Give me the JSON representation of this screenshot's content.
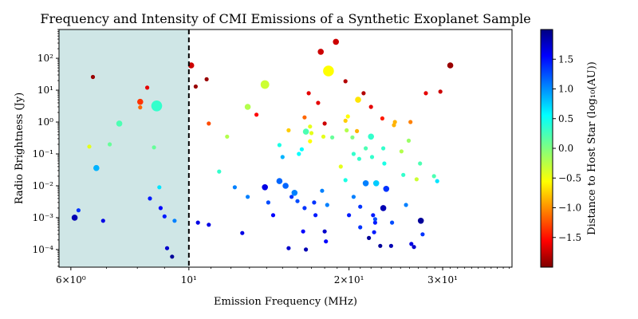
{
  "chart_data": {
    "type": "scatter",
    "title": "Frequency and Intensity of CMI Emissions of a Synthetic Exoplanet Sample",
    "xlabel": "Emission Frequency (MHz)",
    "ylabel": "Radio Brightness (Jy)",
    "x_scale": "log",
    "y_scale": "log",
    "xlim": [
      5.7,
      40.5
    ],
    "ylim": [
      2.8e-05,
      800
    ],
    "x_ticks": [
      {
        "value": 6,
        "label": "6×10⁰"
      },
      {
        "value": 10,
        "label": "10¹"
      },
      {
        "value": 20,
        "label": "2×10¹"
      },
      {
        "value": 30,
        "label": "3×10¹"
      }
    ],
    "y_ticks": [
      {
        "value": 0.0001,
        "label": "10⁻⁴"
      },
      {
        "value": 0.001,
        "label": "10⁻³"
      },
      {
        "value": 0.01,
        "label": "10⁻²"
      },
      {
        "value": 0.1,
        "label": "10⁻¹"
      },
      {
        "value": 1,
        "label": "10⁰"
      },
      {
        "value": 10,
        "label": "10¹"
      },
      {
        "value": 100,
        "label": "10²"
      }
    ],
    "shaded_region": {
      "x_start": 5.7,
      "x_end": 10,
      "color": "#cfe6e6"
    },
    "cutoff_line": {
      "x": 10,
      "style": "dashed",
      "color": "#000000"
    },
    "grid": false,
    "colorbar": {
      "label": "Distance to Host Star (log₁₀(AU))",
      "colormap": "jet_r",
      "range": [
        -2.0,
        2.0
      ],
      "ticks": [
        {
          "value": -1.5,
          "label": "−1.5"
        },
        {
          "value": -1.0,
          "label": "−1.0"
        },
        {
          "value": -0.5,
          "label": "−0.5"
        },
        {
          "value": 0.0,
          "label": "0.0"
        },
        {
          "value": 0.5,
          "label": "0.5"
        },
        {
          "value": 1.0,
          "label": "1.0"
        },
        {
          "value": 1.5,
          "label": "1.5"
        }
      ]
    },
    "points": [
      {
        "x": 6.6,
        "y": 26,
        "c": -1.9,
        "s": 2
      },
      {
        "x": 6.5,
        "y": 0.17,
        "c": -0.4,
        "s": 2
      },
      {
        "x": 6.2,
        "y": 0.0017,
        "c": 1.3,
        "s": 2
      },
      {
        "x": 6.1,
        "y": 0.001,
        "c": 1.8,
        "s": 3
      },
      {
        "x": 6.7,
        "y": 0.036,
        "c": 0.8,
        "s": 3
      },
      {
        "x": 6.9,
        "y": 0.0008,
        "c": 1.6,
        "s": 2
      },
      {
        "x": 7.1,
        "y": 0.2,
        "c": 0.1,
        "s": 2
      },
      {
        "x": 7.4,
        "y": 0.9,
        "c": 0.2,
        "s": 3
      },
      {
        "x": 8.1,
        "y": 4.3,
        "c": -1.3,
        "s": 3
      },
      {
        "x": 8.1,
        "y": 2.9,
        "c": -1.1,
        "s": 2
      },
      {
        "x": 8.35,
        "y": 12,
        "c": -1.6,
        "s": 2
      },
      {
        "x": 8.7,
        "y": 3.2,
        "c": 0.3,
        "s": 5
      },
      {
        "x": 8.6,
        "y": 0.16,
        "c": 0.1,
        "s": 2
      },
      {
        "x": 8.8,
        "y": 0.009,
        "c": 0.6,
        "s": 2
      },
      {
        "x": 8.45,
        "y": 0.004,
        "c": 1.4,
        "s": 2
      },
      {
        "x": 8.85,
        "y": 0.002,
        "c": 1.5,
        "s": 2
      },
      {
        "x": 9.0,
        "y": 0.0011,
        "c": 1.4,
        "s": 2
      },
      {
        "x": 9.4,
        "y": 0.0008,
        "c": 1.0,
        "s": 2
      },
      {
        "x": 9.1,
        "y": 0.00011,
        "c": 1.7,
        "s": 2
      },
      {
        "x": 9.3,
        "y": 6e-05,
        "c": 1.9,
        "s": 2
      },
      {
        "x": 10.1,
        "y": 60,
        "c": -1.7,
        "s": 3
      },
      {
        "x": 10.3,
        "y": 13,
        "c": -1.9,
        "s": 2
      },
      {
        "x": 10.8,
        "y": 22,
        "c": -1.9,
        "s": 2
      },
      {
        "x": 10.9,
        "y": 0.9,
        "c": -1.2,
        "s": 2
      },
      {
        "x": 11.4,
        "y": 0.028,
        "c": 0.3,
        "s": 2
      },
      {
        "x": 10.4,
        "y": 0.0007,
        "c": 1.6,
        "s": 2
      },
      {
        "x": 10.9,
        "y": 0.0006,
        "c": 1.6,
        "s": 2
      },
      {
        "x": 11.8,
        "y": 0.35,
        "c": -0.2,
        "s": 2
      },
      {
        "x": 12.2,
        "y": 0.009,
        "c": 1.0,
        "s": 2
      },
      {
        "x": 12.6,
        "y": 0.00033,
        "c": 1.6,
        "s": 2
      },
      {
        "x": 12.9,
        "y": 3.0,
        "c": -0.2,
        "s": 3
      },
      {
        "x": 12.9,
        "y": 0.0045,
        "c": 1.0,
        "s": 2
      },
      {
        "x": 13.4,
        "y": 1.7,
        "c": -1.5,
        "s": 2
      },
      {
        "x": 13.9,
        "y": 15,
        "c": -0.3,
        "s": 4
      },
      {
        "x": 13.9,
        "y": 0.009,
        "c": 1.6,
        "s": 3
      },
      {
        "x": 14.1,
        "y": 0.003,
        "c": 1.2,
        "s": 2
      },
      {
        "x": 14.4,
        "y": 0.0012,
        "c": 1.5,
        "s": 2
      },
      {
        "x": 14.8,
        "y": 0.014,
        "c": 1.1,
        "s": 3
      },
      {
        "x": 14.8,
        "y": 0.19,
        "c": 0.4,
        "s": 2
      },
      {
        "x": 15.0,
        "y": 0.08,
        "c": 0.8,
        "s": 2
      },
      {
        "x": 15.2,
        "y": 0.01,
        "c": 1.1,
        "s": 3
      },
      {
        "x": 15.4,
        "y": 0.55,
        "c": -0.7,
        "s": 2
      },
      {
        "x": 15.6,
        "y": 0.0045,
        "c": 1.3,
        "s": 2
      },
      {
        "x": 15.4,
        "y": 0.00011,
        "c": 1.7,
        "s": 2
      },
      {
        "x": 15.8,
        "y": 0.006,
        "c": 1.0,
        "s": 3
      },
      {
        "x": 16.1,
        "y": 0.1,
        "c": 0.5,
        "s": 2
      },
      {
        "x": 16.3,
        "y": 0.14,
        "c": 0.5,
        "s": 2
      },
      {
        "x": 16.0,
        "y": 0.0033,
        "c": 1.2,
        "s": 2
      },
      {
        "x": 16.5,
        "y": 1.4,
        "c": -1.1,
        "s": 2
      },
      {
        "x": 16.6,
        "y": 0.5,
        "c": 0.2,
        "s": 3
      },
      {
        "x": 16.5,
        "y": 0.002,
        "c": 1.3,
        "s": 2
      },
      {
        "x": 16.4,
        "y": 0.00037,
        "c": 1.5,
        "s": 2
      },
      {
        "x": 16.6,
        "y": 0.0001,
        "c": 1.8,
        "s": 2
      },
      {
        "x": 16.8,
        "y": 8,
        "c": -1.6,
        "s": 2
      },
      {
        "x": 16.9,
        "y": 0.72,
        "c": -0.4,
        "s": 2
      },
      {
        "x": 16.9,
        "y": 0.25,
        "c": -0.5,
        "s": 2
      },
      {
        "x": 17.0,
        "y": 0.45,
        "c": -0.4,
        "s": 2
      },
      {
        "x": 17.2,
        "y": 0.003,
        "c": 1.3,
        "s": 2
      },
      {
        "x": 17.3,
        "y": 0.0012,
        "c": 1.4,
        "s": 2
      },
      {
        "x": 17.5,
        "y": 4,
        "c": -1.6,
        "s": 2
      },
      {
        "x": 17.7,
        "y": 160,
        "c": -1.7,
        "s": 3
      },
      {
        "x": 17.9,
        "y": 0.35,
        "c": -0.4,
        "s": 2
      },
      {
        "x": 17.8,
        "y": 0.007,
        "c": 1.0,
        "s": 2
      },
      {
        "x": 18.0,
        "y": 0.9,
        "c": -1.7,
        "s": 2
      },
      {
        "x": 18.2,
        "y": 0.0025,
        "c": 1.0,
        "s": 2
      },
      {
        "x": 18.0,
        "y": 0.00037,
        "c": 1.7,
        "s": 2
      },
      {
        "x": 18.1,
        "y": 0.00018,
        "c": 1.5,
        "s": 2
      },
      {
        "x": 18.3,
        "y": 40,
        "c": -0.5,
        "s": 5
      },
      {
        "x": 18.6,
        "y": 0.33,
        "c": 0.1,
        "s": 2
      },
      {
        "x": 18.9,
        "y": 330,
        "c": -1.7,
        "s": 3
      },
      {
        "x": 19.3,
        "y": 0.04,
        "c": -0.4,
        "s": 2
      },
      {
        "x": 19.7,
        "y": 19,
        "c": -1.8,
        "s": 2
      },
      {
        "x": 19.7,
        "y": 1.1,
        "c": -0.7,
        "s": 2
      },
      {
        "x": 19.9,
        "y": 1.5,
        "c": -0.5,
        "s": 2
      },
      {
        "x": 19.8,
        "y": 0.55,
        "c": -0.2,
        "s": 2
      },
      {
        "x": 19.7,
        "y": 0.015,
        "c": 0.4,
        "s": 2
      },
      {
        "x": 20.0,
        "y": 0.0012,
        "c": 1.4,
        "s": 2
      },
      {
        "x": 20.3,
        "y": 0.33,
        "c": 0.0,
        "s": 2
      },
      {
        "x": 20.4,
        "y": 0.1,
        "c": 0.3,
        "s": 2
      },
      {
        "x": 20.4,
        "y": 0.0045,
        "c": 1.0,
        "s": 2
      },
      {
        "x": 20.8,
        "y": 5,
        "c": -0.6,
        "s": 3
      },
      {
        "x": 20.7,
        "y": 0.52,
        "c": -0.8,
        "s": 2
      },
      {
        "x": 20.9,
        "y": 0.07,
        "c": 0.3,
        "s": 2
      },
      {
        "x": 21.0,
        "y": 0.0022,
        "c": 1.3,
        "s": 2
      },
      {
        "x": 21.0,
        "y": 0.0005,
        "c": 1.3,
        "s": 2
      },
      {
        "x": 21.3,
        "y": 8,
        "c": -1.8,
        "s": 2
      },
      {
        "x": 21.5,
        "y": 0.15,
        "c": 0.2,
        "s": 2
      },
      {
        "x": 21.5,
        "y": 0.012,
        "c": 1.0,
        "s": 3
      },
      {
        "x": 21.8,
        "y": 0.00023,
        "c": 1.9,
        "s": 2
      },
      {
        "x": 22.0,
        "y": 3,
        "c": -1.6,
        "s": 2
      },
      {
        "x": 22.0,
        "y": 0.35,
        "c": 0.3,
        "s": 3
      },
      {
        "x": 22.1,
        "y": 0.08,
        "c": 0.3,
        "s": 2
      },
      {
        "x": 22.2,
        "y": 0.0012,
        "c": 1.4,
        "s": 2
      },
      {
        "x": 22.3,
        "y": 0.00035,
        "c": 1.4,
        "s": 2
      },
      {
        "x": 22.4,
        "y": 0.0007,
        "c": 1.4,
        "s": 2
      },
      {
        "x": 22.4,
        "y": 0.0009,
        "c": 1.2,
        "s": 2
      },
      {
        "x": 22.5,
        "y": 0.012,
        "c": 0.7,
        "s": 3
      },
      {
        "x": 22.9,
        "y": 0.00013,
        "c": 1.9,
        "s": 2
      },
      {
        "x": 23.1,
        "y": 1.3,
        "c": -1.4,
        "s": 2
      },
      {
        "x": 23.2,
        "y": 0.15,
        "c": 0.3,
        "s": 2
      },
      {
        "x": 23.3,
        "y": 0.05,
        "c": 0.4,
        "s": 2
      },
      {
        "x": 23.2,
        "y": 0.002,
        "c": 1.8,
        "s": 3
      },
      {
        "x": 23.5,
        "y": 0.008,
        "c": 1.3,
        "s": 3
      },
      {
        "x": 24.0,
        "y": 0.00013,
        "c": 1.8,
        "s": 2
      },
      {
        "x": 24.1,
        "y": 0.0007,
        "c": 1.2,
        "s": 2
      },
      {
        "x": 24.3,
        "y": 0.8,
        "c": -0.8,
        "s": 2
      },
      {
        "x": 24.4,
        "y": 1.0,
        "c": -0.8,
        "s": 2
      },
      {
        "x": 25.1,
        "y": 0.12,
        "c": -0.2,
        "s": 2
      },
      {
        "x": 25.3,
        "y": 0.022,
        "c": 0.3,
        "s": 2
      },
      {
        "x": 25.6,
        "y": 0.0025,
        "c": 1.0,
        "s": 2
      },
      {
        "x": 25.9,
        "y": 0.26,
        "c": -0.1,
        "s": 2
      },
      {
        "x": 26.1,
        "y": 1.0,
        "c": -1.0,
        "s": 2
      },
      {
        "x": 26.2,
        "y": 0.00015,
        "c": 1.6,
        "s": 2
      },
      {
        "x": 26.5,
        "y": 0.00012,
        "c": 1.7,
        "s": 2
      },
      {
        "x": 26.8,
        "y": 0.016,
        "c": -0.3,
        "s": 2
      },
      {
        "x": 27.2,
        "y": 0.05,
        "c": 0.2,
        "s": 2
      },
      {
        "x": 27.3,
        "y": 0.0008,
        "c": 1.9,
        "s": 3
      },
      {
        "x": 27.5,
        "y": 0.0003,
        "c": 1.3,
        "s": 2
      },
      {
        "x": 27.9,
        "y": 8,
        "c": -1.6,
        "s": 2
      },
      {
        "x": 28.9,
        "y": 0.02,
        "c": 0.2,
        "s": 2
      },
      {
        "x": 29.3,
        "y": 0.014,
        "c": 0.6,
        "s": 2
      },
      {
        "x": 29.7,
        "y": 9,
        "c": -1.7,
        "s": 2
      },
      {
        "x": 31.0,
        "y": 60,
        "c": -1.9,
        "s": 3
      }
    ]
  }
}
